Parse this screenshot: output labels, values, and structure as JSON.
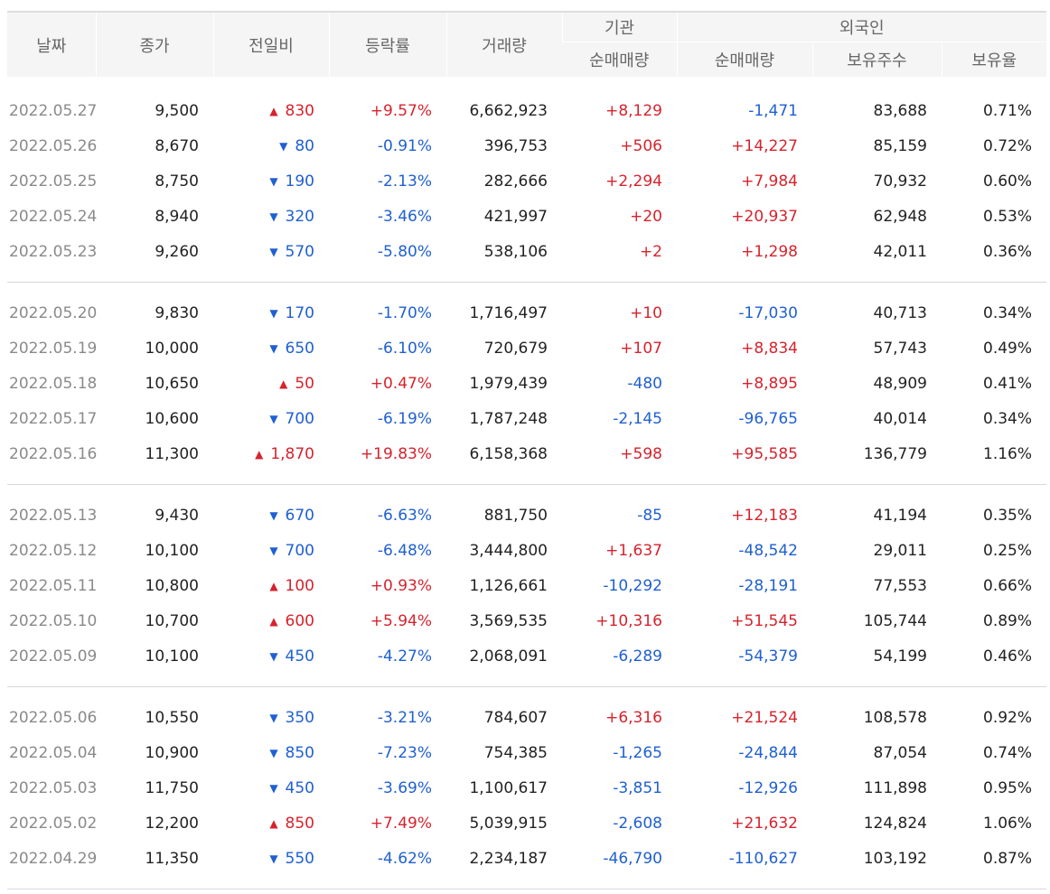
{
  "header": {
    "date": "날짜",
    "close": "종가",
    "change": "전일비",
    "rate": "등락률",
    "volume": "거래량",
    "institution": "기관",
    "foreign": "외국인",
    "inst_net": "순매매량",
    "foreign_net": "순매매량",
    "foreign_holdings": "보유주수",
    "foreign_ratio": "보유율"
  },
  "icons": {
    "up": "up-triangle-icon",
    "down": "down-triangle-icon"
  },
  "colors": {
    "up": "#d6232d",
    "down": "#2060d0",
    "date": "#8a8a8a"
  },
  "rows": [
    {
      "date": "2022.05.27",
      "close": "9,500",
      "dir": "up",
      "change": "830",
      "rate": "+9.57%",
      "volume": "6,662,923",
      "inst": "+8,129",
      "foreign": "-1,471",
      "holdings": "83,688",
      "ratio": "0.71%"
    },
    {
      "date": "2022.05.26",
      "close": "8,670",
      "dir": "down",
      "change": "80",
      "rate": "-0.91%",
      "volume": "396,753",
      "inst": "+506",
      "foreign": "+14,227",
      "holdings": "85,159",
      "ratio": "0.72%"
    },
    {
      "date": "2022.05.25",
      "close": "8,750",
      "dir": "down",
      "change": "190",
      "rate": "-2.13%",
      "volume": "282,666",
      "inst": "+2,294",
      "foreign": "+7,984",
      "holdings": "70,932",
      "ratio": "0.60%"
    },
    {
      "date": "2022.05.24",
      "close": "8,940",
      "dir": "down",
      "change": "320",
      "rate": "-3.46%",
      "volume": "421,997",
      "inst": "+20",
      "foreign": "+20,937",
      "holdings": "62,948",
      "ratio": "0.53%"
    },
    {
      "date": "2022.05.23",
      "close": "9,260",
      "dir": "down",
      "change": "570",
      "rate": "-5.80%",
      "volume": "538,106",
      "inst": "+2",
      "foreign": "+1,298",
      "holdings": "42,011",
      "ratio": "0.36%"
    },
    {
      "date": "2022.05.20",
      "close": "9,830",
      "dir": "down",
      "change": "170",
      "rate": "-1.70%",
      "volume": "1,716,497",
      "inst": "+10",
      "foreign": "-17,030",
      "holdings": "40,713",
      "ratio": "0.34%"
    },
    {
      "date": "2022.05.19",
      "close": "10,000",
      "dir": "down",
      "change": "650",
      "rate": "-6.10%",
      "volume": "720,679",
      "inst": "+107",
      "foreign": "+8,834",
      "holdings": "57,743",
      "ratio": "0.49%"
    },
    {
      "date": "2022.05.18",
      "close": "10,650",
      "dir": "up",
      "change": "50",
      "rate": "+0.47%",
      "volume": "1,979,439",
      "inst": "-480",
      "foreign": "+8,895",
      "holdings": "48,909",
      "ratio": "0.41%"
    },
    {
      "date": "2022.05.17",
      "close": "10,600",
      "dir": "down",
      "change": "700",
      "rate": "-6.19%",
      "volume": "1,787,248",
      "inst": "-2,145",
      "foreign": "-96,765",
      "holdings": "40,014",
      "ratio": "0.34%"
    },
    {
      "date": "2022.05.16",
      "close": "11,300",
      "dir": "up",
      "change": "1,870",
      "rate": "+19.83%",
      "volume": "6,158,368",
      "inst": "+598",
      "foreign": "+95,585",
      "holdings": "136,779",
      "ratio": "1.16%"
    },
    {
      "date": "2022.05.13",
      "close": "9,430",
      "dir": "down",
      "change": "670",
      "rate": "-6.63%",
      "volume": "881,750",
      "inst": "-85",
      "foreign": "+12,183",
      "holdings": "41,194",
      "ratio": "0.35%"
    },
    {
      "date": "2022.05.12",
      "close": "10,100",
      "dir": "down",
      "change": "700",
      "rate": "-6.48%",
      "volume": "3,444,800",
      "inst": "+1,637",
      "foreign": "-48,542",
      "holdings": "29,011",
      "ratio": "0.25%"
    },
    {
      "date": "2022.05.11",
      "close": "10,800",
      "dir": "up",
      "change": "100",
      "rate": "+0.93%",
      "volume": "1,126,661",
      "inst": "-10,292",
      "foreign": "-28,191",
      "holdings": "77,553",
      "ratio": "0.66%"
    },
    {
      "date": "2022.05.10",
      "close": "10,700",
      "dir": "up",
      "change": "600",
      "rate": "+5.94%",
      "volume": "3,569,535",
      "inst": "+10,316",
      "foreign": "+51,545",
      "holdings": "105,744",
      "ratio": "0.89%"
    },
    {
      "date": "2022.05.09",
      "close": "10,100",
      "dir": "down",
      "change": "450",
      "rate": "-4.27%",
      "volume": "2,068,091",
      "inst": "-6,289",
      "foreign": "-54,379",
      "holdings": "54,199",
      "ratio": "0.46%"
    },
    {
      "date": "2022.05.06",
      "close": "10,550",
      "dir": "down",
      "change": "350",
      "rate": "-3.21%",
      "volume": "784,607",
      "inst": "+6,316",
      "foreign": "+21,524",
      "holdings": "108,578",
      "ratio": "0.92%"
    },
    {
      "date": "2022.05.04",
      "close": "10,900",
      "dir": "down",
      "change": "850",
      "rate": "-7.23%",
      "volume": "754,385",
      "inst": "-1,265",
      "foreign": "-24,844",
      "holdings": "87,054",
      "ratio": "0.74%"
    },
    {
      "date": "2022.05.03",
      "close": "11,750",
      "dir": "down",
      "change": "450",
      "rate": "-3.69%",
      "volume": "1,100,617",
      "inst": "-3,851",
      "foreign": "-12,926",
      "holdings": "111,898",
      "ratio": "0.95%"
    },
    {
      "date": "2022.05.02",
      "close": "12,200",
      "dir": "up",
      "change": "850",
      "rate": "+7.49%",
      "volume": "5,039,915",
      "inst": "-2,608",
      "foreign": "+21,632",
      "holdings": "124,824",
      "ratio": "1.06%"
    },
    {
      "date": "2022.04.29",
      "close": "11,350",
      "dir": "down",
      "change": "550",
      "rate": "-4.62%",
      "volume": "2,234,187",
      "inst": "-46,790",
      "foreign": "-110,627",
      "holdings": "103,192",
      "ratio": "0.87%"
    }
  ]
}
